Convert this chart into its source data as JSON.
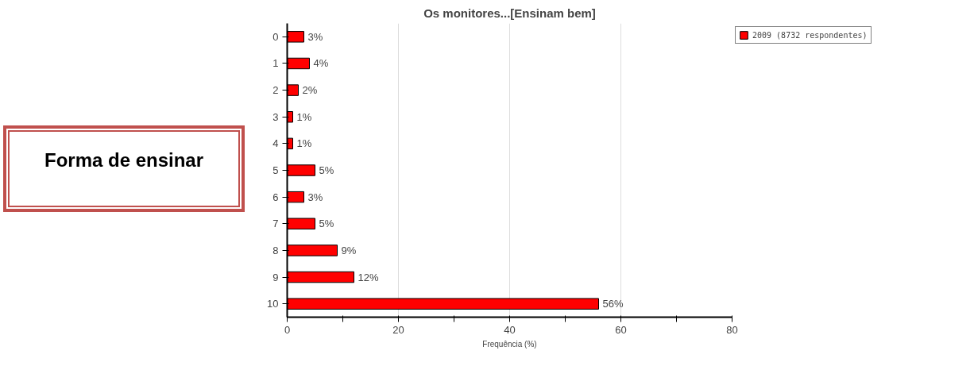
{
  "chart_data": {
    "type": "bar",
    "orientation": "horizontal",
    "title": "Os monitores...[Ensinam bem]",
    "xlabel": "Frequência (%)",
    "categories": [
      "0",
      "1",
      "2",
      "3",
      "4",
      "5",
      "6",
      "7",
      "8",
      "9",
      "10"
    ],
    "series": [
      {
        "name": "2009 (8732 respondentes)",
        "color": "#ff0000",
        "values": [
          3,
          4,
          2,
          1,
          1,
          5,
          3,
          5,
          9,
          12,
          56
        ],
        "value_labels": [
          "3%",
          "4%",
          "2%",
          "1%",
          "1%",
          "5%",
          "3%",
          "5%",
          "9%",
          "12%",
          "56%"
        ]
      }
    ],
    "xlim": [
      0,
      80
    ],
    "xticks": [
      0,
      {
        "value": 10,
        "label": null
      },
      20,
      {
        "value": 30,
        "label": null
      },
      40,
      {
        "value": 50,
        "label": null
      },
      60,
      {
        "value": 70,
        "label": null
      },
      80
    ],
    "grid": "x",
    "legend": "top right",
    "annotations": [
      "Forma de ensinar"
    ]
  }
}
